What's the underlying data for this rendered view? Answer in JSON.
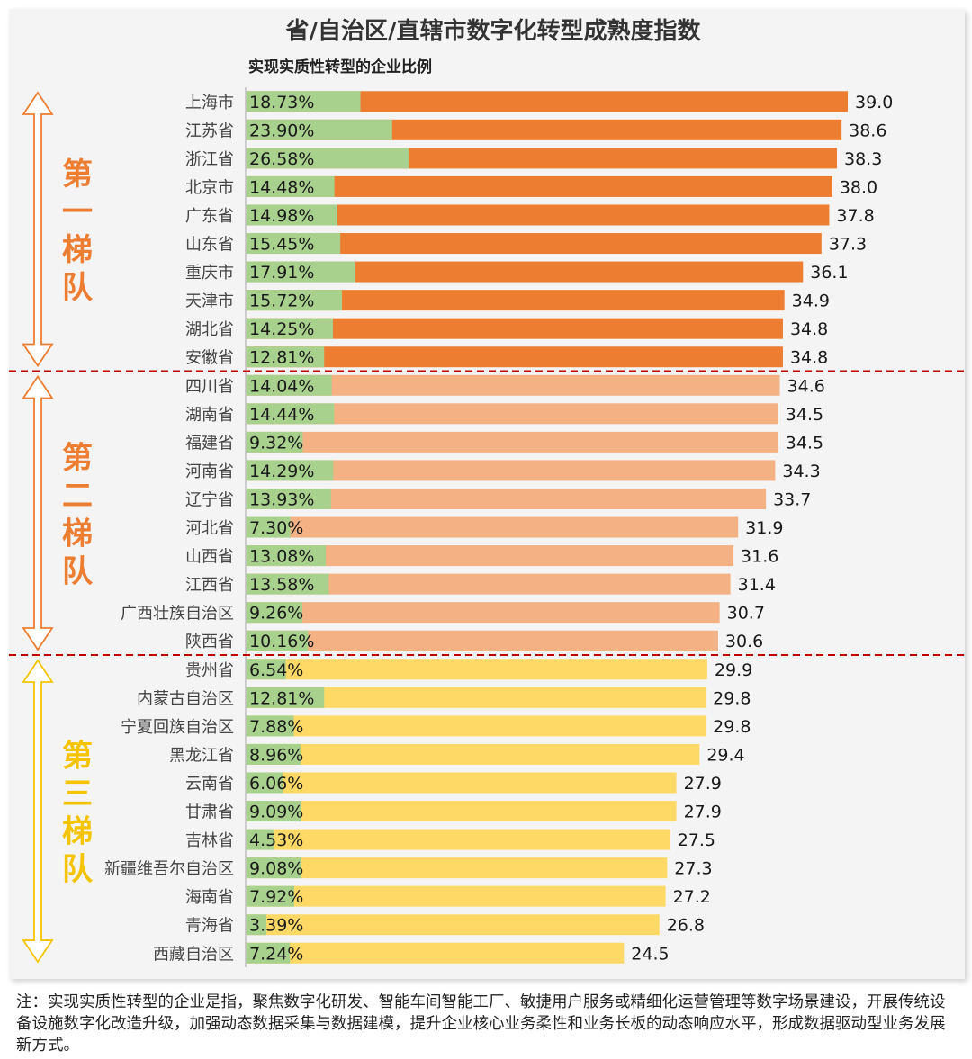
{
  "chart_data": {
    "type": "bar",
    "title": "省/自治区/直辖市数字化转型成熟度指数",
    "subtitle": "实现实质性转型的企业比例",
    "categories": [
      "上海市",
      "江苏省",
      "浙江省",
      "北京市",
      "广东省",
      "山东省",
      "重庆市",
      "天津市",
      "湖北省",
      "安徽省",
      "四川省",
      "湖南省",
      "福建省",
      "河南省",
      "辽宁省",
      "河北省",
      "山西省",
      "江西省",
      "广西壮族自治区",
      "陕西省",
      "贵州省",
      "内蒙古自治区",
      "宁夏回族自治区",
      "黑龙江省",
      "云南省",
      "甘肃省",
      "吉林省",
      "新疆维吾尔自治区",
      "海南省",
      "青海省",
      "西藏自治区"
    ],
    "series": [
      {
        "name": "数字化转型成熟度指数",
        "values": [
          39.0,
          38.6,
          38.3,
          38.0,
          37.8,
          37.3,
          36.1,
          34.9,
          34.8,
          34.8,
          34.6,
          34.5,
          34.5,
          34.3,
          33.7,
          31.9,
          31.6,
          31.4,
          30.7,
          30.6,
          29.9,
          29.8,
          29.8,
          29.4,
          27.9,
          27.9,
          27.5,
          27.3,
          27.2,
          26.8,
          24.5
        ],
        "labels": [
          "39.0",
          "38.6",
          "38.3",
          "38.0",
          "37.8",
          "37.3",
          "36.1",
          "34.9",
          "34.8",
          "34.8",
          "34.6",
          "34.5",
          "34.5",
          "34.3",
          "33.7",
          "31.9",
          "31.6",
          "31.4",
          "30.7",
          "30.6",
          "29.9",
          "29.8",
          "29.8",
          "29.4",
          "27.9",
          "27.9",
          "27.5",
          "27.3",
          "27.2",
          "26.8",
          "24.5"
        ]
      },
      {
        "name": "实现实质性转型的企业比例",
        "values": [
          18.73,
          23.9,
          26.58,
          14.48,
          14.98,
          15.45,
          17.91,
          15.72,
          14.25,
          12.81,
          14.04,
          14.44,
          9.32,
          14.29,
          13.93,
          7.3,
          13.08,
          13.58,
          9.26,
          10.16,
          6.54,
          12.81,
          7.88,
          8.96,
          6.06,
          9.09,
          4.53,
          9.08,
          7.92,
          3.39,
          7.24
        ],
        "labels": [
          "18.73%",
          "23.90%",
          "26.58%",
          "14.48%",
          "14.98%",
          "15.45%",
          "17.91%",
          "15.72%",
          "14.25%",
          "12.81%",
          "14.04%",
          "14.44%",
          "9.32%",
          "14.29%",
          "13.93%",
          "7.30%",
          "13.08%",
          "13.58%",
          "9.26%",
          "10.16%",
          "6.54%",
          "12.81%",
          "7.88%",
          "8.96%",
          "6.06%",
          "9.09%",
          "4.53%",
          "9.08%",
          "7.92%",
          "3.39%",
          "7.24%"
        ]
      }
    ],
    "tiers": [
      {
        "label": "第一梯队",
        "chars": [
          "第",
          "一",
          "梯",
          "队"
        ],
        "start": 0,
        "count": 10,
        "color": "#ed7d31",
        "bar_color": "#ed7d31"
      },
      {
        "label": "第二梯队",
        "chars": [
          "第",
          "二",
          "梯",
          "队"
        ],
        "start": 10,
        "count": 10,
        "color": "#ed7d31",
        "bar_color": "#f4b183"
      },
      {
        "label": "第三梯队",
        "chars": [
          "第",
          "三",
          "梯",
          "队"
        ],
        "start": 20,
        "count": 11,
        "color": "#f5c400",
        "bar_color": "#ffd966"
      }
    ],
    "colors": {
      "pct_bar": "#a9d18e",
      "divider": "#c00000",
      "axis": "#bfbfbf"
    },
    "xlim": [
      0,
      39.0
    ]
  },
  "note": "注：实现实质性转型的企业是指，聚焦数字化研发、智能车间智能工厂、敏捷用户服务或精细化运营管理等数字场景建设，开展传统设备设施数字化改造升级，加强动态数据采集与数据建模，提升企业核心业务柔性和业务长板的动态响应水平，形成数据驱动型业务发展新方式。"
}
